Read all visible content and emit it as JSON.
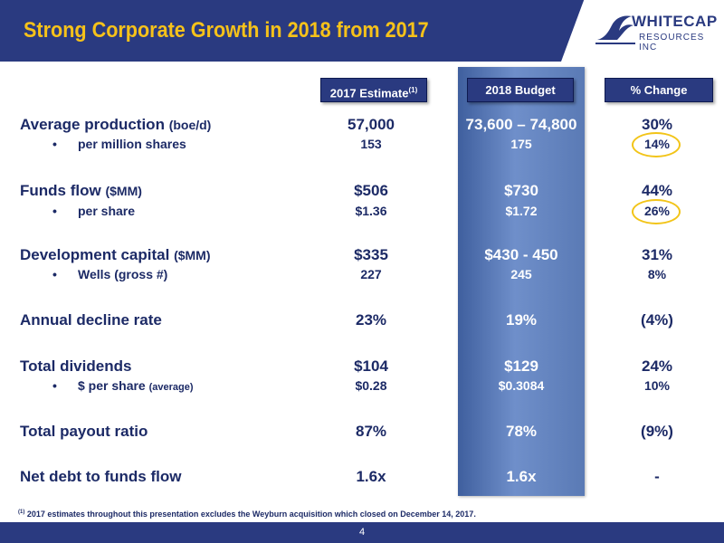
{
  "slide": {
    "title": "Strong Corporate Growth in 2018 from 2017",
    "logo": {
      "line1": "WHITECAP",
      "line2": "RESOURCES INC"
    },
    "columns": {
      "c1": "2017 Estimate",
      "c1_sup": "(1)",
      "c2": "2018 Budget",
      "c3": "% Change"
    },
    "rows": [
      {
        "label": "Average production",
        "unit": "(boe/d)",
        "v2017": "57,000",
        "v2018": "73,600 – 74,800",
        "change": "30%"
      },
      {
        "label": "per million shares",
        "bullet": "•",
        "v2017": "153",
        "v2018": "175",
        "change": "14%"
      },
      {
        "label": "Funds flow",
        "unit": "($MM)",
        "v2017": "$506",
        "v2018": "$730",
        "change": "44%"
      },
      {
        "label": "per share",
        "bullet": "•",
        "v2017": "$1.36",
        "v2018": "$1.72",
        "change": "26%"
      },
      {
        "label": "Development capital",
        "unit": "($MM)",
        "v2017": "$335",
        "v2018": "$430 - 450",
        "change": "31%"
      },
      {
        "label": "Wells (gross #)",
        "bullet": "•",
        "v2017": "227",
        "v2018": "245",
        "change": "8%"
      },
      {
        "label": "Annual decline rate",
        "v2017": "23%",
        "v2018": "19%",
        "change": "(4%)"
      },
      {
        "label": "Total dividends",
        "v2017": "$104",
        "v2018": "$129",
        "change": "24%"
      },
      {
        "label": "$ per share",
        "small": "(average)",
        "bullet": "•",
        "v2017": "$0.28",
        "v2018": "$0.3084",
        "change": "10%"
      },
      {
        "label": "Total payout ratio",
        "v2017": "87%",
        "v2018": "78%",
        "change": "(9%)"
      },
      {
        "label": "Net debt to funds flow",
        "v2017": "1.6x",
        "v2018": "1.6x",
        "change": "-"
      }
    ],
    "footnote": {
      "sup": "(1)",
      "text": " 2017 estimates throughout this presentation excludes the Weyburn acquisition which closed on December 14, 2017."
    },
    "page_number": "4",
    "colors": {
      "navy": "#2a3a80",
      "title_gold": "#f6c21a",
      "highlight_circle": "#f2c418",
      "budget_column": "#5a7ab5"
    }
  }
}
